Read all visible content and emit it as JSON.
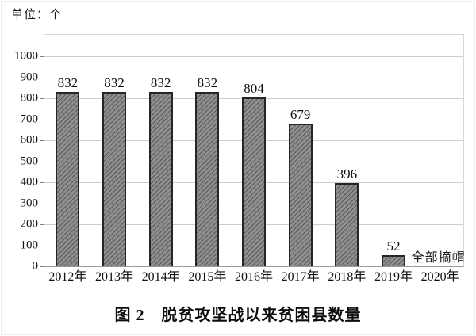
{
  "unit_label": "单位：个",
  "caption": "图 2　脱贫攻坚战以来贫困县数量",
  "colors": {
    "bar_fill": "#8f8f8f",
    "bar_stripe": "#2d2d2d",
    "bar_border": "#262626",
    "gridline": "#cdcdcd",
    "axis": "#7f7f7f",
    "text": "#111111"
  },
  "chart_data": {
    "type": "bar",
    "title": "图 2　脱贫攻坚战以来贫困县数量",
    "xlabel": "",
    "ylabel": "单位：个",
    "categories": [
      "2012年",
      "2013年",
      "2014年",
      "2015年",
      "2016年",
      "2017年",
      "2018年",
      "2019年",
      "2020年"
    ],
    "values": [
      832,
      832,
      832,
      832,
      804,
      679,
      396,
      52,
      0
    ],
    "value_labels": [
      "832",
      "832",
      "832",
      "832",
      "804",
      "679",
      "396",
      "52",
      ""
    ],
    "ylim": [
      0,
      1000
    ],
    "ytick_step": 100,
    "y_ticks": [
      0,
      100,
      200,
      300,
      400,
      500,
      600,
      700,
      800,
      900,
      1000
    ],
    "grid": true,
    "legend": null,
    "annotations": [
      {
        "text": "全部摘帽",
        "category": "2020年",
        "note": "no bar for 2020, all counties delisted"
      }
    ]
  }
}
